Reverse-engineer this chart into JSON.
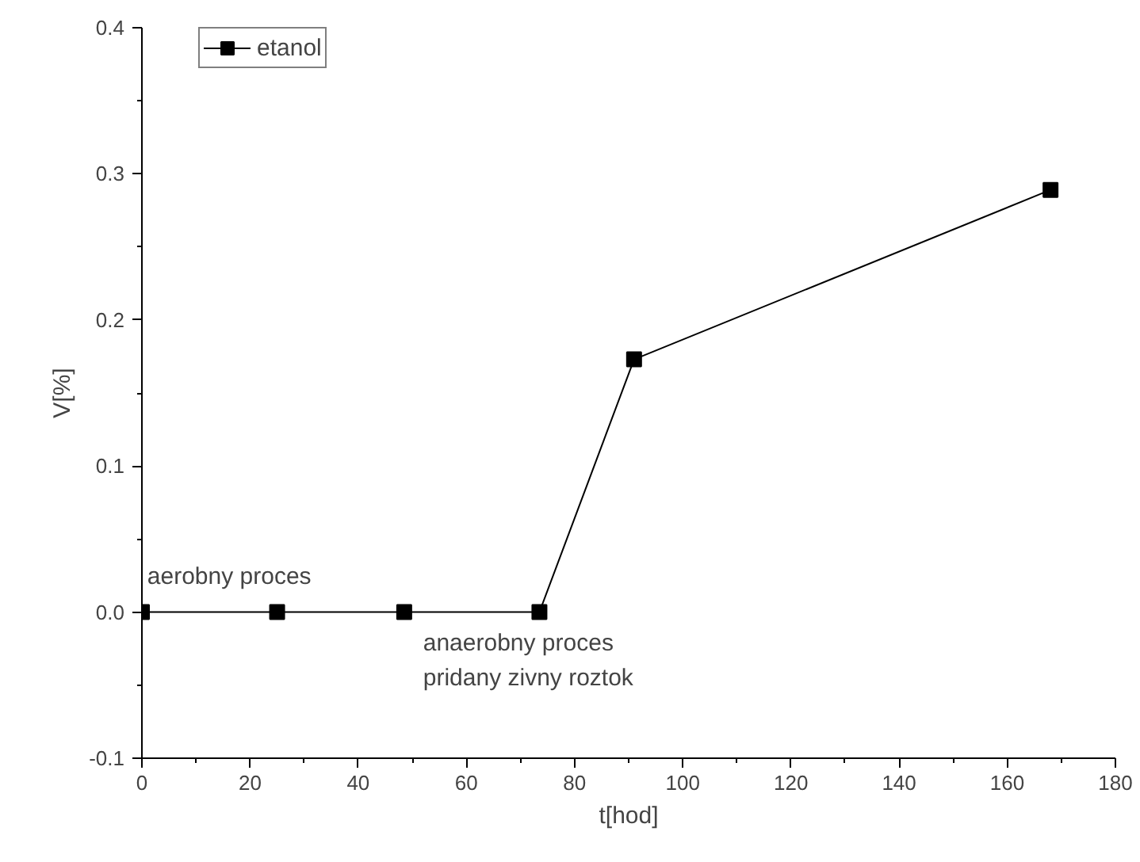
{
  "chart_data": {
    "type": "line",
    "xlabel": "t[hod]",
    "ylabel": "V[%]",
    "x": [
      0,
      25,
      48.5,
      73.5,
      91,
      168
    ],
    "series": [
      {
        "name": "etanol",
        "color": "#000000",
        "values": [
          0,
          0,
          0,
          0,
          0.173,
          0.289
        ]
      }
    ],
    "xlim": [
      0,
      180
    ],
    "xticks": [
      0,
      20,
      40,
      60,
      80,
      100,
      120,
      140,
      160,
      180
    ],
    "ylim": [
      -0.1,
      0.4
    ],
    "yticks": [
      -0.1,
      {
        "value": 0,
        "label": "0.0"
      },
      0.1,
      0.2,
      0.3,
      0.4
    ],
    "marker": "square",
    "line_style": "solid",
    "grid": false,
    "legend": "top left",
    "annotations": [
      "aerobny proces",
      "anaerobny proces\npridany zivny roztok"
    ]
  }
}
